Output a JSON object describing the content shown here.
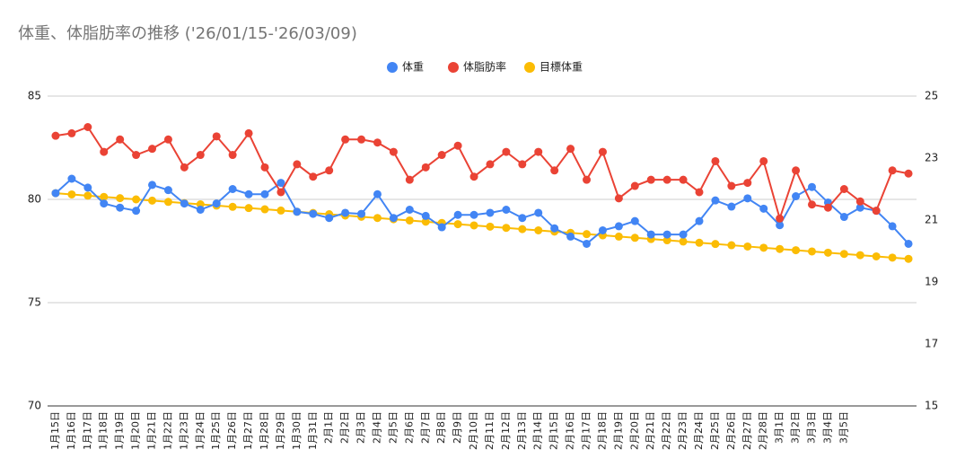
{
  "chart_data": {
    "type": "line",
    "title": "体重、体脂肪率の推移 ('26/01/15-'26/03/09)",
    "categories": [
      "1月15日",
      "1月16日",
      "1月17日",
      "1月18日",
      "1月19日",
      "1月20日",
      "1月21日",
      "1月22日",
      "1月23日",
      "1月24日",
      "1月25日",
      "1月26日",
      "1月27日",
      "1月28日",
      "1月29日",
      "1月30日",
      "1月31日",
      "2月1日",
      "2月2日",
      "2月3日",
      "2月4日",
      "2月5日",
      "2月6日",
      "2月7日",
      "2月8日",
      "2月9日",
      "2月10日",
      "2月11日",
      "2月12日",
      "2月13日",
      "2月14日",
      "2月15日",
      "2月16日",
      "2月17日",
      "2月18日",
      "2月19日",
      "2月20日",
      "2月21日",
      "2月22日",
      "2月23日",
      "2月24日",
      "2月25日",
      "2月26日",
      "2月27日",
      "2月28日",
      "3月1日",
      "3月2日",
      "3月3日",
      "3月4日",
      "3月5日",
      null,
      null,
      null,
      null
    ],
    "series": [
      {
        "name": "体重",
        "color": "#4285f4",
        "axis": "y",
        "values": [
          80.3,
          81.0,
          80.57,
          79.8,
          79.6,
          79.45,
          80.7,
          80.45,
          79.8,
          79.5,
          79.8,
          80.5,
          80.25,
          80.25,
          80.8,
          79.4,
          79.3,
          79.1,
          79.35,
          79.3,
          80.25,
          79.1,
          79.5,
          79.2,
          78.65,
          79.25,
          79.25,
          79.35,
          79.5,
          79.1,
          79.35,
          78.6,
          78.2,
          77.85,
          78.5,
          78.7,
          78.95,
          78.3,
          78.3,
          78.3,
          78.95,
          79.95,
          79.65,
          80.05,
          79.55,
          78.75,
          80.15,
          80.6,
          79.85,
          79.15,
          79.6,
          79.45,
          78.7,
          77.85
        ]
      },
      {
        "name": "体脂肪率",
        "color": "#ea4335",
        "axis": "y2",
        "values": [
          23.72,
          23.8,
          24.0,
          23.2,
          23.6,
          23.1,
          23.3,
          23.6,
          22.7,
          23.1,
          23.7,
          23.1,
          23.8,
          22.7,
          21.9,
          22.8,
          22.4,
          22.6,
          23.6,
          23.6,
          23.5,
          23.2,
          22.3,
          22.7,
          23.1,
          23.4,
          22.4,
          22.8,
          23.2,
          22.8,
          23.2,
          22.6,
          23.3,
          22.3,
          23.2,
          21.7,
          22.1,
          22.3,
          22.3,
          22.3,
          21.9,
          22.9,
          22.1,
          22.2,
          22.9,
          21.05,
          22.6,
          21.5,
          21.4,
          22.0,
          21.6,
          21.3,
          22.6,
          22.5
        ]
      },
      {
        "name": "目標体重",
        "color": "#fbbc04",
        "axis": "y",
        "values": [
          80.3,
          80.24,
          80.18,
          80.12,
          80.06,
          80.0,
          79.94,
          79.88,
          79.82,
          79.76,
          79.7,
          79.64,
          79.58,
          79.52,
          79.46,
          79.4,
          79.34,
          79.28,
          79.22,
          79.16,
          79.1,
          79.04,
          78.98,
          78.92,
          78.86,
          78.8,
          78.74,
          78.68,
          78.62,
          78.56,
          78.5,
          78.44,
          78.38,
          78.32,
          78.26,
          78.2,
          78.14,
          78.08,
          78.02,
          77.96,
          77.9,
          77.84,
          77.78,
          77.72,
          77.66,
          77.6,
          77.54,
          77.48,
          77.42,
          77.36,
          77.3,
          77.24,
          77.18,
          77.12
        ]
      }
    ],
    "ylim": [
      70,
      85
    ],
    "yticks": [
      70,
      75,
      80,
      85
    ],
    "y2lim": [
      15,
      25
    ],
    "y2ticks": [
      15,
      17,
      19,
      21,
      23,
      25
    ],
    "grid": true,
    "legend": "top"
  }
}
